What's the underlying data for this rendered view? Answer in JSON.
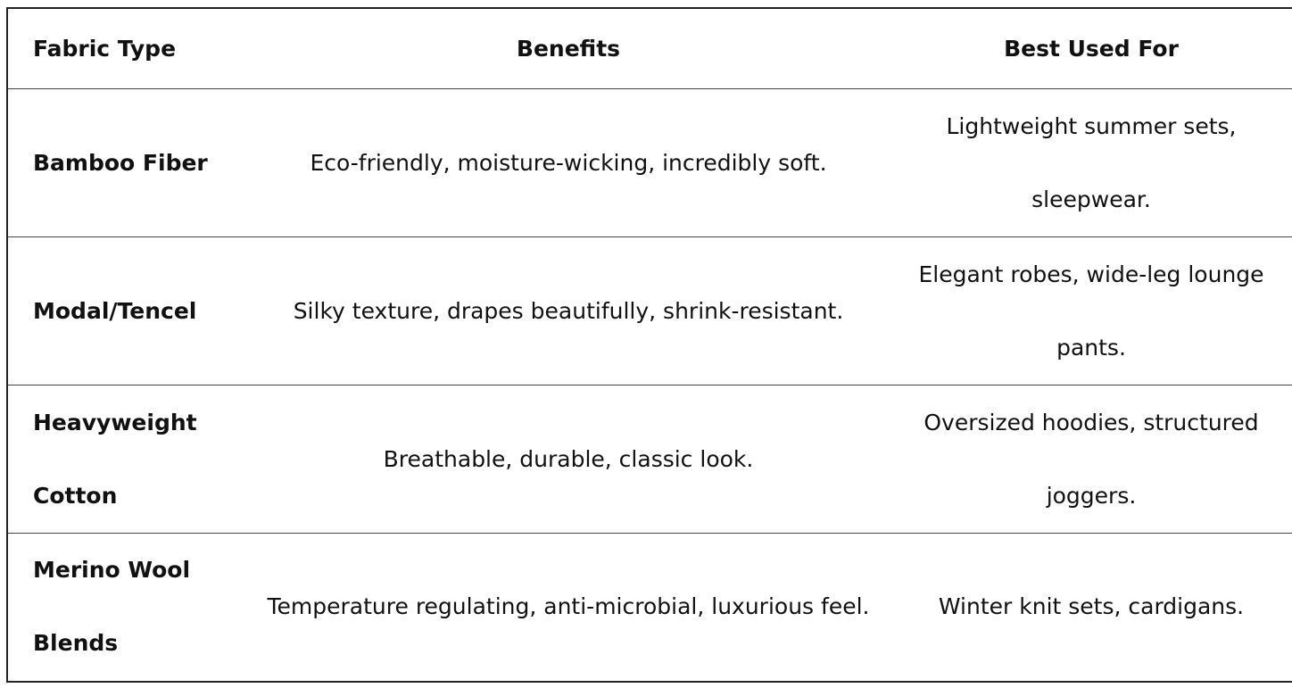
{
  "table": {
    "header": [
      "Fabric Type",
      "Benefits",
      "Best Used For"
    ],
    "rows": [
      [
        "Bamboo Fiber",
        "Eco-friendly, moisture-wicking, incredibly soft.",
        "Lightweight summer sets, sleepwear."
      ],
      [
        "Modal/Tencel",
        "Silky texture, drapes beautifully, shrink-resistant.",
        "Elegant robes, wide-leg lounge pants."
      ],
      [
        "Heavyweight Cotton",
        "Breathable, durable, classic look.",
        "Oversized hoodies, structured joggers."
      ],
      [
        "Merino Wool Blends",
        "Temperature regulating, anti-microbial, luxurious feel.",
        "Winter knit sets, cardigans."
      ]
    ]
  }
}
